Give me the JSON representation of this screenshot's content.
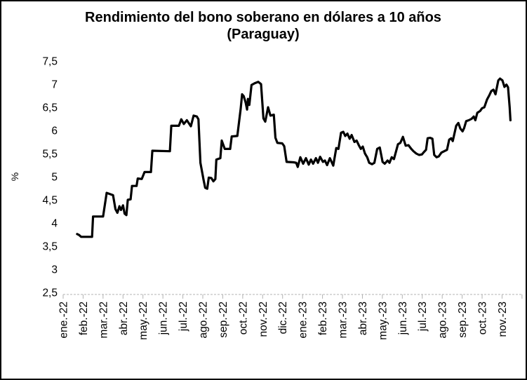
{
  "title": {
    "line1": "Rendimiento del bono soberano en dólares a 10 años",
    "line2": "(Paraguay)"
  },
  "y_axis": {
    "label": "%",
    "tick_labels": [
      "7,5",
      "7",
      "6,5",
      "6",
      "5,5",
      "5",
      "4,5",
      "4",
      "3,5",
      "3",
      "2,5"
    ],
    "tick_values": [
      7.5,
      7.0,
      6.5,
      6.0,
      5.5,
      5.0,
      4.5,
      4.0,
      3.5,
      3.0,
      2.5
    ],
    "min": 2.5,
    "max": 7.5,
    "step": 0.5
  },
  "x_axis": {
    "tick_labels": [
      "ene.-22",
      "feb.-22",
      "mar.-22",
      "abr.-22",
      "may.-22",
      "jun.-22",
      "jul.-22",
      "ago.-22",
      "sep.-22",
      "oct.-22",
      "nov.-22",
      "dic.-22",
      "ene.-23",
      "feb.-23",
      "mar.-23",
      "abr.-23",
      "may.-23",
      "jun.-23",
      "jul.-23",
      "ago.-23",
      "sep.-23",
      "oct.-23",
      "nov.-23"
    ]
  },
  "colors": {
    "line": "#000000",
    "axis": "#b3b3b3",
    "text": "#000000",
    "background": "#ffffff"
  },
  "chart_data": {
    "type": "line",
    "title": "Rendimiento del bono soberano en dólares a 10 años (Paraguay)",
    "xlabel": "",
    "ylabel": "%",
    "ylim": [
      2.5,
      7.5
    ],
    "x_unit": "months; 0 = ene.-22 tick, 22 = nov.-23 tick (daily yield series, %)",
    "grid": false,
    "legend": "none",
    "series": [
      {
        "name": "Rendimiento bono soberano USD 10 años - Paraguay (%)",
        "points": [
          [
            0.7,
            3.76
          ],
          [
            0.8,
            3.74
          ],
          [
            0.9,
            3.7
          ],
          [
            1.45,
            3.7
          ],
          [
            1.5,
            4.14
          ],
          [
            2.0,
            4.14
          ],
          [
            2.18,
            4.65
          ],
          [
            2.5,
            4.6
          ],
          [
            2.62,
            4.3
          ],
          [
            2.72,
            4.22
          ],
          [
            2.82,
            4.36
          ],
          [
            2.9,
            4.28
          ],
          [
            3.0,
            4.38
          ],
          [
            3.08,
            4.2
          ],
          [
            3.17,
            4.17
          ],
          [
            3.24,
            4.5
          ],
          [
            3.38,
            4.51
          ],
          [
            3.45,
            4.8
          ],
          [
            3.68,
            4.8
          ],
          [
            3.74,
            4.96
          ],
          [
            3.94,
            4.95
          ],
          [
            4.08,
            5.1
          ],
          [
            4.4,
            5.1
          ],
          [
            4.47,
            5.56
          ],
          [
            5.35,
            5.55
          ],
          [
            5.42,
            6.1
          ],
          [
            5.8,
            6.1
          ],
          [
            5.92,
            6.24
          ],
          [
            6.05,
            6.14
          ],
          [
            6.2,
            6.22
          ],
          [
            6.4,
            6.09
          ],
          [
            6.54,
            6.32
          ],
          [
            6.7,
            6.3
          ],
          [
            6.78,
            6.24
          ],
          [
            6.88,
            5.3
          ],
          [
            7.04,
            4.93
          ],
          [
            7.12,
            4.76
          ],
          [
            7.22,
            4.74
          ],
          [
            7.3,
            4.98
          ],
          [
            7.43,
            4.97
          ],
          [
            7.53,
            4.9
          ],
          [
            7.63,
            4.95
          ],
          [
            7.68,
            5.37
          ],
          [
            7.88,
            5.4
          ],
          [
            7.95,
            5.78
          ],
          [
            8.1,
            5.6
          ],
          [
            8.37,
            5.6
          ],
          [
            8.45,
            5.87
          ],
          [
            8.73,
            5.88
          ],
          [
            8.9,
            6.47
          ],
          [
            8.97,
            6.78
          ],
          [
            9.05,
            6.74
          ],
          [
            9.15,
            6.6
          ],
          [
            9.22,
            6.45
          ],
          [
            9.26,
            6.68
          ],
          [
            9.33,
            6.55
          ],
          [
            9.44,
            6.98
          ],
          [
            9.6,
            7.02
          ],
          [
            9.78,
            7.05
          ],
          [
            9.92,
            7.0
          ],
          [
            10.04,
            6.26
          ],
          [
            10.13,
            6.19
          ],
          [
            10.27,
            6.5
          ],
          [
            10.39,
            6.32
          ],
          [
            10.56,
            6.34
          ],
          [
            10.64,
            5.84
          ],
          [
            10.74,
            5.73
          ],
          [
            10.98,
            5.72
          ],
          [
            11.08,
            5.66
          ],
          [
            11.2,
            5.32
          ],
          [
            11.55,
            5.31
          ],
          [
            11.68,
            5.3
          ],
          [
            11.76,
            5.21
          ],
          [
            11.89,
            5.42
          ],
          [
            12.03,
            5.28
          ],
          [
            12.17,
            5.4
          ],
          [
            12.31,
            5.26
          ],
          [
            12.42,
            5.37
          ],
          [
            12.53,
            5.28
          ],
          [
            12.67,
            5.4
          ],
          [
            12.77,
            5.3
          ],
          [
            12.88,
            5.43
          ],
          [
            13.02,
            5.32
          ],
          [
            13.12,
            5.35
          ],
          [
            13.23,
            5.25
          ],
          [
            13.37,
            5.4
          ],
          [
            13.54,
            5.24
          ],
          [
            13.69,
            5.62
          ],
          [
            13.8,
            5.6
          ],
          [
            13.93,
            5.95
          ],
          [
            14.04,
            5.97
          ],
          [
            14.14,
            5.88
          ],
          [
            14.25,
            5.93
          ],
          [
            14.36,
            5.82
          ],
          [
            14.46,
            5.9
          ],
          [
            14.6,
            5.75
          ],
          [
            14.71,
            5.78
          ],
          [
            14.82,
            5.68
          ],
          [
            14.92,
            5.6
          ],
          [
            15.02,
            5.65
          ],
          [
            15.13,
            5.5
          ],
          [
            15.24,
            5.42
          ],
          [
            15.34,
            5.3
          ],
          [
            15.48,
            5.27
          ],
          [
            15.6,
            5.3
          ],
          [
            15.74,
            5.6
          ],
          [
            15.87,
            5.63
          ],
          [
            16.01,
            5.32
          ],
          [
            16.12,
            5.28
          ],
          [
            16.26,
            5.35
          ],
          [
            16.36,
            5.3
          ],
          [
            16.47,
            5.42
          ],
          [
            16.58,
            5.38
          ],
          [
            16.78,
            5.7
          ],
          [
            16.9,
            5.73
          ],
          [
            17.03,
            5.86
          ],
          [
            17.17,
            5.67
          ],
          [
            17.31,
            5.68
          ],
          [
            17.45,
            5.6
          ],
          [
            17.56,
            5.55
          ],
          [
            17.7,
            5.5
          ],
          [
            17.84,
            5.47
          ],
          [
            17.98,
            5.48
          ],
          [
            18.08,
            5.53
          ],
          [
            18.19,
            5.58
          ],
          [
            18.27,
            5.83
          ],
          [
            18.4,
            5.84
          ],
          [
            18.51,
            5.82
          ],
          [
            18.6,
            5.47
          ],
          [
            18.72,
            5.42
          ],
          [
            18.83,
            5.44
          ],
          [
            18.96,
            5.52
          ],
          [
            19.1,
            5.55
          ],
          [
            19.24,
            5.58
          ],
          [
            19.35,
            5.8
          ],
          [
            19.45,
            5.83
          ],
          [
            19.53,
            5.77
          ],
          [
            19.7,
            6.1
          ],
          [
            19.81,
            6.16
          ],
          [
            19.91,
            6.04
          ],
          [
            20.02,
            5.98
          ],
          [
            20.1,
            6.05
          ],
          [
            20.2,
            6.2
          ],
          [
            20.33,
            6.22
          ],
          [
            20.47,
            6.25
          ],
          [
            20.58,
            6.3
          ],
          [
            20.66,
            6.22
          ],
          [
            20.76,
            6.38
          ],
          [
            20.9,
            6.42
          ],
          [
            21.0,
            6.48
          ],
          [
            21.11,
            6.5
          ],
          [
            21.25,
            6.67
          ],
          [
            21.35,
            6.75
          ],
          [
            21.46,
            6.85
          ],
          [
            21.57,
            6.88
          ],
          [
            21.67,
            6.78
          ],
          [
            21.81,
            7.08
          ],
          [
            21.9,
            7.12
          ],
          [
            22.02,
            7.08
          ],
          [
            22.12,
            6.94
          ],
          [
            22.22,
            6.99
          ],
          [
            22.3,
            6.93
          ],
          [
            22.38,
            6.5
          ],
          [
            22.42,
            6.22
          ]
        ]
      }
    ]
  }
}
